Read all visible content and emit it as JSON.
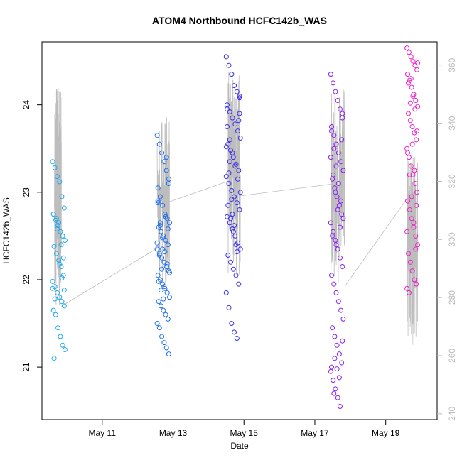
{
  "chart_data": {
    "type": "scatter",
    "title": "ATOM4 Northbound HCFC142b_WAS",
    "xlabel": "Date",
    "ylabel": "HCFC142b_WAS",
    "x_unit": "day of May",
    "xlim": [
      9.3,
      20.45
    ],
    "ylim": [
      20.4,
      24.72
    ],
    "y2lim": [
      238,
      368
    ],
    "x_ticks": [
      {
        "value": 11,
        "label": "May 11"
      },
      {
        "value": 13,
        "label": "May 13"
      },
      {
        "value": 15,
        "label": "May 15"
      },
      {
        "value": 17,
        "label": "May 17"
      },
      {
        "value": 19,
        "label": "May 19"
      }
    ],
    "y_ticks": [
      21,
      22,
      23,
      24
    ],
    "y2_ticks": [
      240,
      260,
      280,
      300,
      320,
      340,
      360
    ],
    "grid": false,
    "legend": "none",
    "colors": {
      "point_series": [
        "#1fa8f0",
        "#1f6ef0",
        "#3a2ef0",
        "#8a1ef0",
        "#f01ec8"
      ],
      "line": "#bdbdbd",
      "axis": "#000000",
      "y2_axis": "#bbbbbb"
    },
    "series": [
      {
        "x_range": [
          9.6,
          9.95
        ],
        "y": [
          23.35,
          23.28,
          23.18,
          23.12,
          22.95,
          22.82,
          22.75,
          22.68,
          22.62,
          22.55,
          22.5,
          22.45,
          22.38,
          22.3,
          22.22,
          22.15,
          22.05,
          21.98,
          21.92,
          21.85,
          21.8,
          21.75,
          21.7,
          21.65,
          21.6,
          21.45,
          21.35,
          21.25,
          21.2,
          21.1,
          22.7,
          22.65,
          22.4,
          22.25,
          21.9,
          21.78,
          22.58,
          22.18,
          22.02,
          21.88
        ]
      },
      {
        "x_range": [
          12.55,
          12.9
        ],
        "y": [
          23.65,
          23.55,
          23.45,
          23.35,
          23.25,
          23.15,
          23.05,
          22.95,
          22.85,
          22.75,
          22.7,
          22.65,
          22.6,
          22.55,
          22.5,
          22.45,
          22.4,
          22.35,
          22.3,
          22.25,
          22.2,
          22.15,
          22.1,
          22.05,
          22.0,
          21.95,
          21.9,
          21.85,
          21.8,
          21.75,
          21.7,
          21.65,
          21.6,
          21.55,
          21.5,
          21.45,
          21.35,
          21.28,
          21.22,
          21.15,
          22.88,
          22.62,
          22.48,
          22.32,
          22.18,
          22.08,
          21.98,
          21.88,
          21.78,
          22.72,
          22.58,
          22.42,
          22.28,
          22.12,
          21.92,
          23.4,
          23.1,
          22.9,
          22.65,
          22.35
        ]
      },
      {
        "x_range": [
          14.5,
          14.9
        ],
        "y": [
          24.55,
          24.45,
          24.35,
          24.22,
          24.15,
          24.08,
          24.0,
          23.92,
          23.85,
          23.78,
          23.7,
          23.62,
          23.55,
          23.48,
          23.4,
          23.32,
          23.25,
          23.18,
          23.1,
          23.02,
          22.95,
          22.88,
          22.8,
          22.72,
          22.65,
          22.58,
          22.5,
          22.42,
          22.35,
          22.28,
          22.2,
          22.12,
          22.05,
          21.95,
          21.85,
          21.68,
          21.5,
          21.4,
          21.33,
          23.9,
          23.75,
          23.6,
          23.45,
          23.3,
          23.15,
          23.0,
          22.85,
          22.7,
          22.55,
          22.4,
          23.82,
          23.52,
          23.22,
          22.92,
          22.62,
          22.32,
          24.1,
          23.95,
          23.35,
          22.75
        ]
      },
      {
        "x_range": [
          17.45,
          17.8
        ],
        "y": [
          24.35,
          24.25,
          24.15,
          24.05,
          23.95,
          23.85,
          23.75,
          23.65,
          23.55,
          23.45,
          23.35,
          23.25,
          23.15,
          23.05,
          22.95,
          22.85,
          22.75,
          22.65,
          22.55,
          22.45,
          22.35,
          22.25,
          22.15,
          22.05,
          21.95,
          21.85,
          21.75,
          21.65,
          21.55,
          21.45,
          21.35,
          21.25,
          21.15,
          21.05,
          20.95,
          20.85,
          20.75,
          20.65,
          20.55,
          23.9,
          23.7,
          23.5,
          23.3,
          23.1,
          22.9,
          22.7,
          22.5,
          21.1,
          20.98,
          20.88,
          23.6,
          23.4,
          23.2,
          23.0,
          22.8,
          22.6,
          21.3,
          21.0,
          20.7,
          22.4
        ]
      },
      {
        "x_range": [
          19.6,
          19.9
        ],
        "y": [
          24.65,
          24.6,
          24.55,
          24.5,
          24.45,
          24.4,
          24.35,
          24.28,
          24.2,
          24.12,
          24.05,
          23.98,
          23.9,
          23.82,
          23.75,
          23.68,
          23.6,
          23.5,
          23.4,
          23.3,
          23.2,
          23.1,
          23.0,
          22.9,
          22.8,
          22.7,
          22.6,
          22.5,
          22.4,
          22.3,
          22.2,
          22.1,
          22.0,
          21.95,
          21.9,
          21.85,
          24.3,
          24.1,
          23.95,
          23.7,
          23.45,
          23.2,
          22.95,
          22.65,
          22.35,
          24.48,
          24.25,
          24.02,
          23.55,
          23.25,
          22.85,
          22.55
        ]
      }
    ],
    "line_y2": [
      {
        "x_range": [
          9.65,
          9.85
        ],
        "band": [
          275,
          355
        ]
      },
      {
        "x_range": [
          12.55,
          12.9
        ],
        "band": [
          285,
          343
        ]
      },
      {
        "x_range": [
          14.55,
          14.9
        ],
        "band": [
          287,
          358
        ]
      },
      {
        "x_range": [
          17.45,
          17.85
        ],
        "band": [
          285,
          352
        ]
      },
      {
        "x_range": [
          19.6,
          19.9
        ],
        "band": [
          263,
          330
        ]
      }
    ],
    "connectors_y2": [
      [
        [
          9.85,
          277
        ],
        [
          12.55,
          297
        ]
      ],
      [
        [
          12.9,
          313
        ],
        [
          14.55,
          320
        ]
      ],
      [
        [
          14.9,
          315
        ],
        [
          17.45,
          319
        ]
      ],
      [
        [
          17.85,
          284
        ],
        [
          19.6,
          314
        ]
      ]
    ]
  }
}
